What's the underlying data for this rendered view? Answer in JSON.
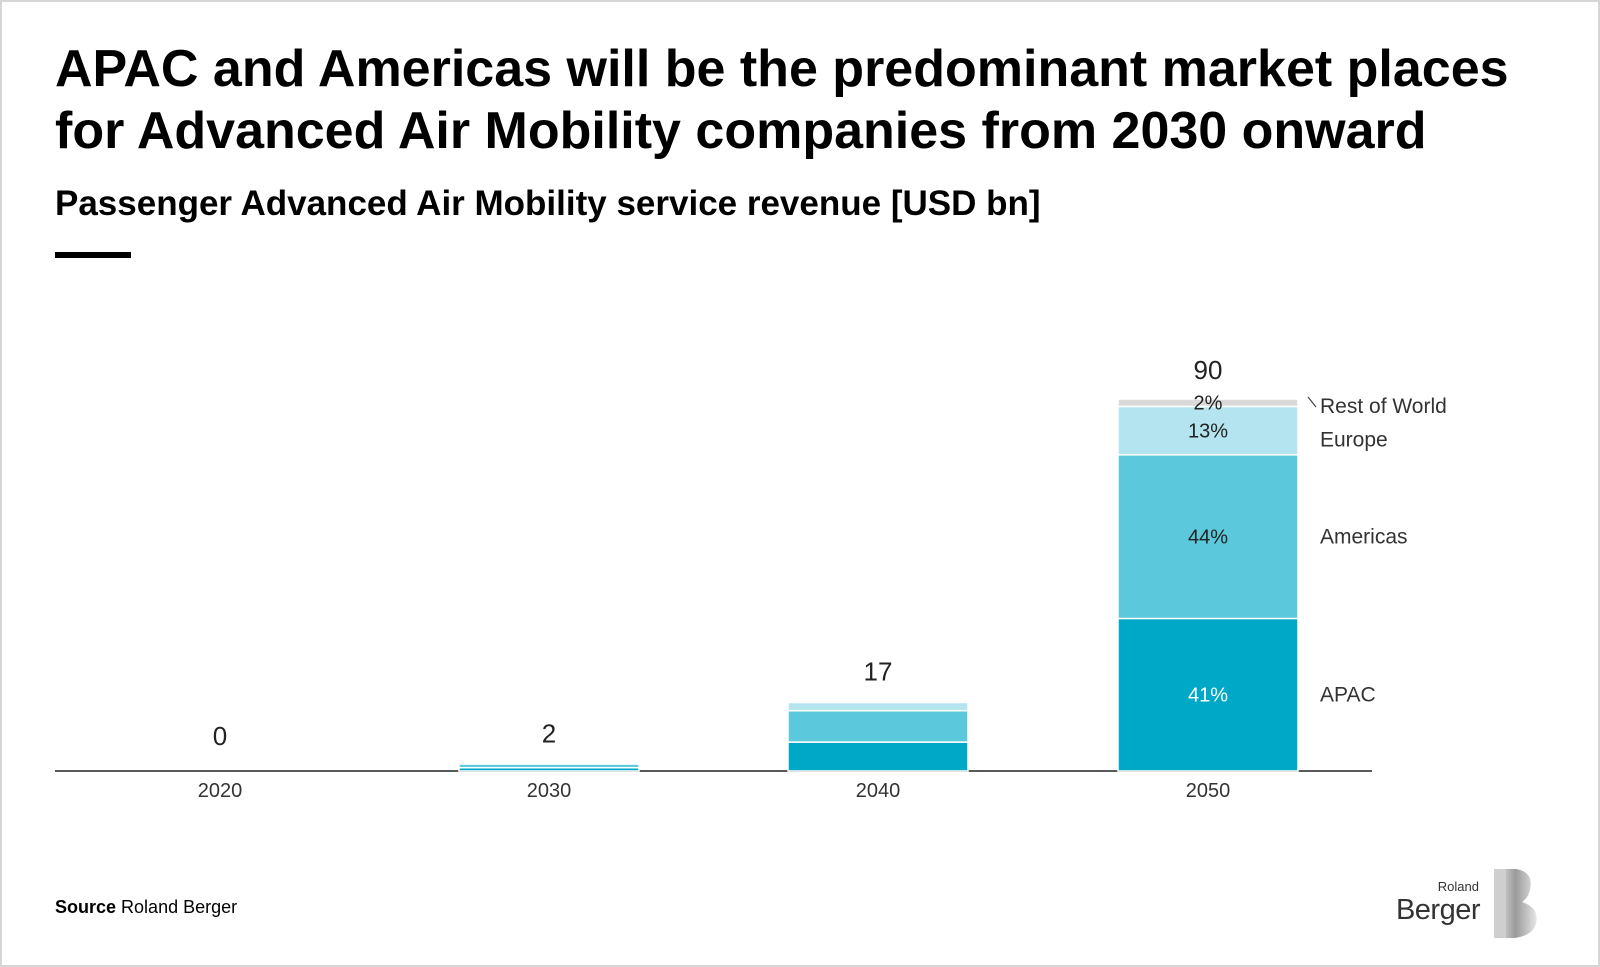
{
  "title": "APAC and Americas will be the predominant market places for Advanced Air Mobility companies from 2030 onward",
  "subtitle": "Passenger Advanced Air Mobility service revenue [USD bn]",
  "source_label": "Source",
  "source_text": "Roland Berger",
  "logo": {
    "top_text": "Roland",
    "main_text": "Berger"
  },
  "colors": {
    "APAC": "#00a8c8",
    "Americas": "#5bc8dc",
    "Europe": "#b3e4ef",
    "Rest of World": "#d9d9d9",
    "axis": "#222222"
  },
  "chart_data": {
    "type": "bar",
    "stacked": true,
    "title": "Passenger Advanced Air Mobility service revenue [USD bn]",
    "categories": [
      "2020",
      "2030",
      "2040",
      "2050"
    ],
    "totals": [
      0,
      2,
      17,
      90
    ],
    "series": [
      {
        "name": "APAC",
        "values": [
          0,
          0.8,
          7.0,
          36.9
        ]
      },
      {
        "name": "Americas",
        "values": [
          0,
          0.9,
          7.6,
          39.6
        ]
      },
      {
        "name": "Europe",
        "values": [
          0,
          0.25,
          2.0,
          11.7
        ]
      },
      {
        "name": "Rest of World",
        "values": [
          0,
          0.05,
          0.4,
          1.8
        ]
      }
    ],
    "labels_2050": [
      {
        "series": "APAC",
        "label": "41%"
      },
      {
        "series": "Americas",
        "label": "44%"
      },
      {
        "series": "Europe",
        "label": "13%"
      },
      {
        "series": "Rest of World",
        "label": "2%"
      }
    ],
    "legend": [
      "Rest of World",
      "Europe",
      "Americas",
      "APAC"
    ],
    "xlabel": "",
    "ylabel": "",
    "ylim": [
      0,
      90
    ]
  }
}
